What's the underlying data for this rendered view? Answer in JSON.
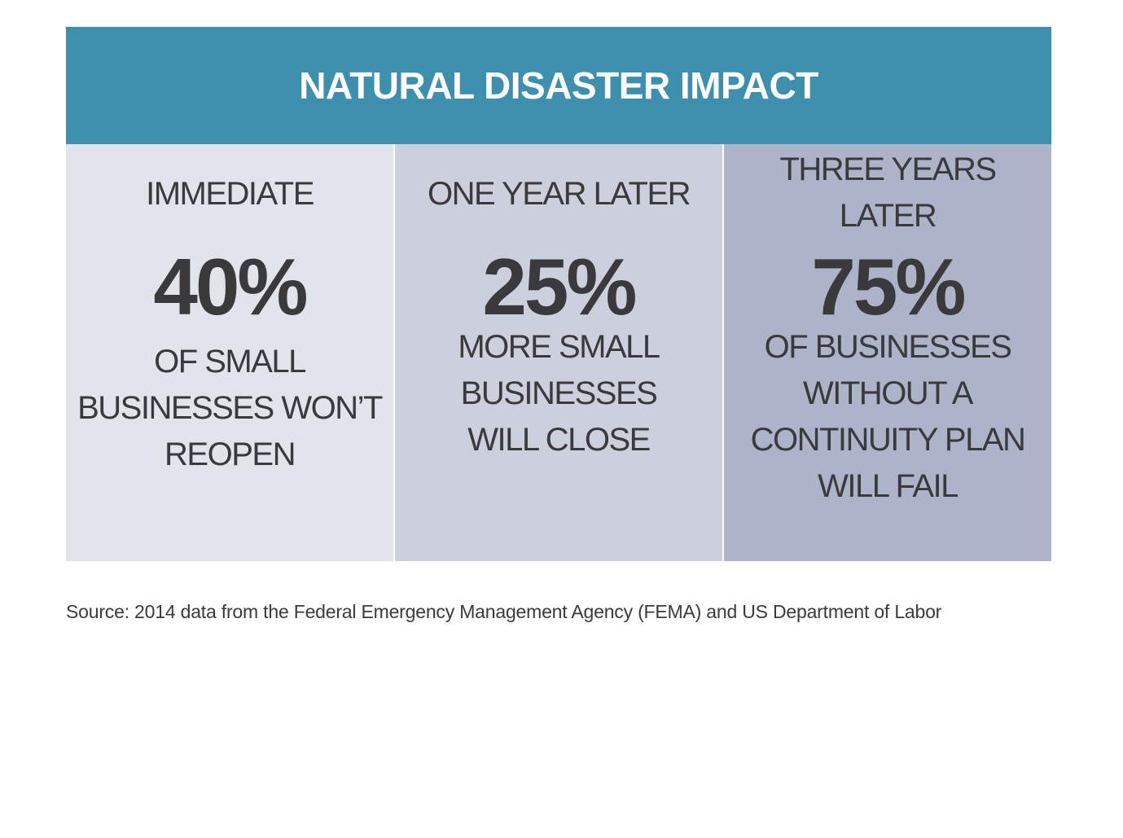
{
  "title": "NATURAL DISASTER IMPACT",
  "columns": [
    {
      "label_lines": [
        "IMMEDIATE"
      ],
      "stat": "40%",
      "desc_lines": [
        "OF SMALL",
        "BUSINESSES WON’T",
        "REOPEN"
      ],
      "background": "#e2e4ec"
    },
    {
      "label_lines": [
        "ONE YEAR LATER"
      ],
      "stat": "25%",
      "desc_lines": [
        "MORE SMALL",
        "BUSINESSES",
        "WILL CLOSE"
      ],
      "background": "#ccd0dd"
    },
    {
      "label_lines": [
        "THREE YEARS",
        "LATER"
      ],
      "stat": "75%",
      "desc_lines": [
        "OF BUSINESSES",
        "WITHOUT A",
        "CONTINUITY PLAN",
        "WILL FAIL"
      ],
      "background": "#adb4c9"
    }
  ],
  "source": "Source: 2014 data from the Federal Emergency Management Agency (FEMA) and US Department of Labor",
  "colors": {
    "banner": "#3d8fae",
    "banner_text": "#ffffff",
    "text": "#3a3a3c"
  }
}
